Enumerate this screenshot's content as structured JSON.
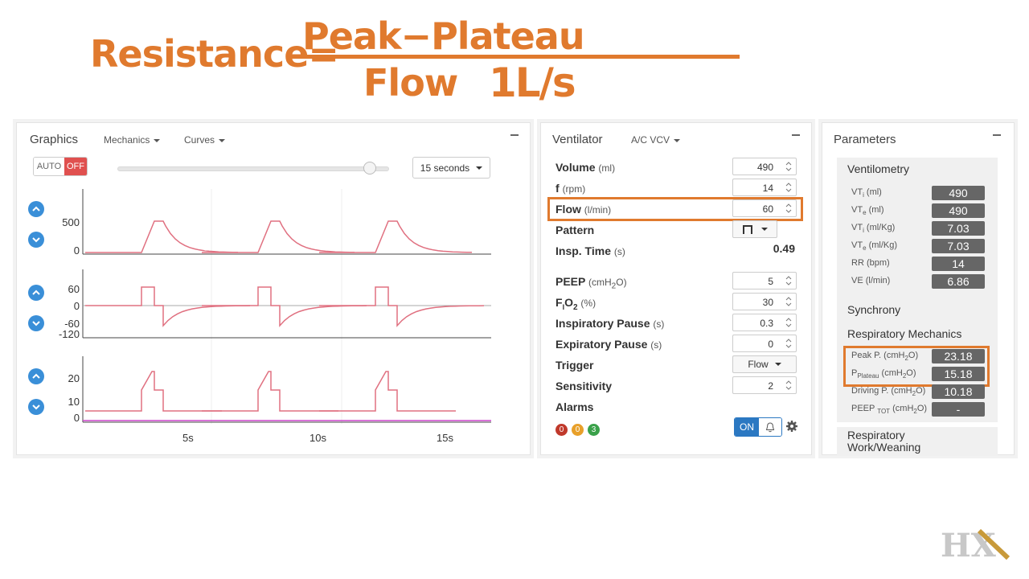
{
  "formula": {
    "lhs": "Resistance=",
    "numerator": "Peak−Plateau",
    "denominator": "Flow",
    "denominator_value": "1L/s"
  },
  "graphics": {
    "title": "Graphics",
    "mechanics_label": "Mechanics",
    "curves_label": "Curves",
    "auto_label": "AUTO",
    "off_label": "OFF",
    "seconds_label": "15 seconds",
    "slider_value_fraction": 0.93,
    "chart1_ticks": [
      "500",
      "0"
    ],
    "chart2_ticks": [
      "60",
      "0",
      "-60",
      "-120"
    ],
    "chart3_ticks": [
      "20",
      "10",
      "0"
    ],
    "x_ticks": [
      "5s",
      "10s",
      "15s"
    ],
    "colors": {
      "curve": "#e07080",
      "baseline": "#cc44cc",
      "toggle_off": "#e0504f",
      "chevron": "#3a8fd8"
    }
  },
  "ventilator": {
    "title": "Ventilator",
    "mode_label": "A/C VCV",
    "rows": [
      {
        "label": "Volume",
        "unit": "(ml)",
        "value": "490"
      },
      {
        "label": "f",
        "unit": "(rpm)",
        "value": "14"
      },
      {
        "label": "Flow",
        "unit": "(l/min)",
        "value": "60"
      }
    ],
    "pattern_label": "Pattern",
    "pattern_icon": "square-wave-icon",
    "insp_time_label": "Insp. Time",
    "insp_time_unit": "(s)",
    "insp_time_value": "0.49",
    "peep_label": "PEEP",
    "peep_unit_prefix": "(cmH",
    "peep_unit_sub": "2",
    "peep_unit_suffix": "O)",
    "peep_value": "5",
    "fio2_label_f": "F",
    "fio2_label_i": "I",
    "fio2_label_o": "O",
    "fio2_label_2": "2",
    "fio2_unit": "(%)",
    "fio2_value": "30",
    "insp_pause_label": "Inspiratory Pause",
    "insp_pause_unit": "(s)",
    "insp_pause_value": "0.3",
    "exp_pause_label": "Expiratory Pause",
    "exp_pause_unit": "(s)",
    "exp_pause_value": "0",
    "trigger_label": "Trigger",
    "trigger_value": "Flow",
    "sensitivity_label": "Sensitivity",
    "sensitivity_value": "2",
    "alarms_label": "Alarms",
    "alarm_counts": [
      "0",
      "0",
      "3"
    ],
    "alarm_colors": [
      "#c0392b",
      "#e8a02a",
      "#3aa14a"
    ],
    "on_label": "ON",
    "highlight_color": "#e07a2e"
  },
  "parameters": {
    "title": "Parameters",
    "ventilometry_title": "Ventilometry",
    "ventilometry": [
      {
        "name": "VT",
        "sub": "i",
        "unit": "(ml)",
        "value": "490"
      },
      {
        "name": "VT",
        "sub": "e",
        "unit": "(ml)",
        "value": "490"
      },
      {
        "name": "VT",
        "sub": "i",
        "unit": "(ml/Kg)",
        "value": "7.03"
      },
      {
        "name": "VT",
        "sub": "e",
        "unit": "(ml/Kg)",
        "value": "7.03"
      },
      {
        "name": "RR",
        "sub": "",
        "unit": "(bpm)",
        "value": "14"
      },
      {
        "name": "VE",
        "sub": "",
        "unit": "(l/min)",
        "value": "6.86"
      }
    ],
    "synchrony_title": "Synchrony",
    "mechanics_title": "Respiratory Mechanics",
    "mechanics": [
      {
        "name": "Peak P.",
        "sub": "",
        "unit_prefix": "(cmH",
        "unit_sub": "2",
        "unit_suffix": "O)",
        "value": "23.18"
      },
      {
        "name": "P",
        "sub": "Plateau",
        "unit_prefix": "(cmH",
        "unit_sub": "2",
        "unit_suffix": "O)",
        "value": "15.18"
      },
      {
        "name": "Driving P.",
        "sub": "",
        "unit_prefix": "(cmH",
        "unit_sub": "2",
        "unit_suffix": "O)",
        "value": "10.18"
      },
      {
        "name": "PEEP ",
        "sub": "TOT",
        "unit_prefix": "(cmH",
        "unit_sub": "2",
        "unit_suffix": "O)",
        "value": "-"
      }
    ],
    "work_title_1": "Respiratory",
    "work_title_2": "Work/Weaning"
  },
  "logo": {
    "text": "HX",
    "color_h": "#c8c8c8",
    "color_x": "#8a1f2b",
    "accent": "#c89a3a"
  }
}
